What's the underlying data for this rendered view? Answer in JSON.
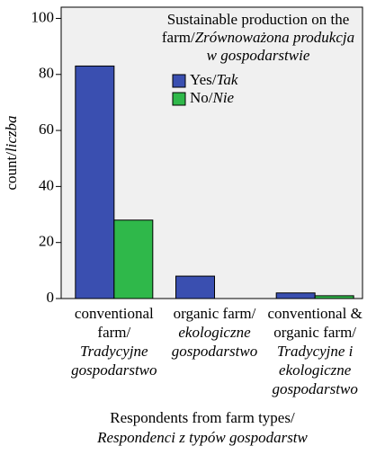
{
  "chart_data": {
    "type": "bar",
    "categories": [
      "conventional farm/",
      "organic farm/",
      "conventional & organic farm/"
    ],
    "category_translations": [
      "Tradycyjne gospodarstwo",
      "ekologiczne gospodarstwo",
      "Tradycyjne i ekologiczne gospodarstwo"
    ],
    "series": [
      {
        "name": "Yes/",
        "name_translation": "Tak",
        "color": "#3a4fb0",
        "values": [
          83,
          8,
          2
        ]
      },
      {
        "name": "No/",
        "name_translation": "Nie",
        "color": "#2fb84a",
        "values": [
          28,
          0,
          1
        ]
      }
    ],
    "legend_title": "Sustainable production on the farm/",
    "legend_title_translation": "Zrównoważona produkcja w gospodarstwie",
    "y_label": "count/",
    "y_label_translation": "liczba",
    "x_label": "Respondents from farm types/",
    "x_label_translation": "Respondenci z typów gospodarstw",
    "ylim": [
      0,
      104
    ],
    "yticks": [
      0,
      20,
      40,
      60,
      80,
      100
    ],
    "legend": "upper right"
  }
}
